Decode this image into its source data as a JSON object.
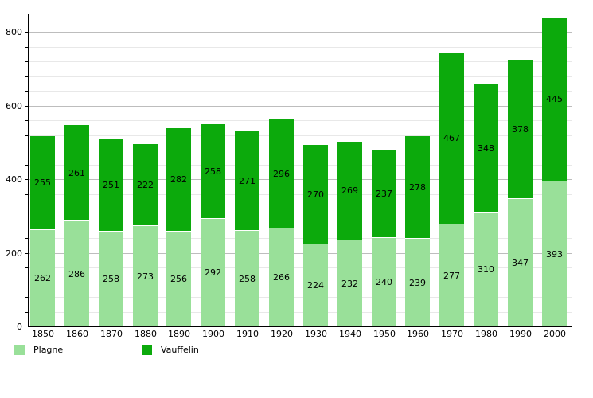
{
  "chart_data": {
    "type": "bar",
    "stacked": true,
    "title": "",
    "categories": [
      "1850",
      "1860",
      "1870",
      "1880",
      "1890",
      "1900",
      "1910",
      "1920",
      "1930",
      "1940",
      "1950",
      "1960",
      "1970",
      "1980",
      "1990",
      "2000"
    ],
    "series": [
      {
        "name": "Plagne",
        "color": "#99e099",
        "values": [
          262,
          286,
          258,
          273,
          256,
          292,
          258,
          266,
          224,
          232,
          240,
          239,
          277,
          310,
          347,
          393
        ]
      },
      {
        "name": "Vauffelin",
        "color": "#0caa0c",
        "values": [
          255,
          261,
          251,
          222,
          282,
          258,
          271,
          296,
          270,
          269,
          237,
          278,
          467,
          348,
          378,
          445
        ]
      }
    ],
    "xlabel": "",
    "ylabel": "",
    "ylim": [
      0,
      847
    ],
    "yticks": [
      0,
      200,
      400,
      600,
      800
    ],
    "minor_tick_step": 40,
    "grid": true,
    "legend_position": "bottom",
    "value_labels": "inside-center",
    "colors": {
      "background": "#ffffff",
      "axis": "#000000",
      "grid_major": "#bdbdbd",
      "grid_minor": "#e8e8e8",
      "text": "#000000",
      "segment_separator": "#ffffff"
    }
  }
}
